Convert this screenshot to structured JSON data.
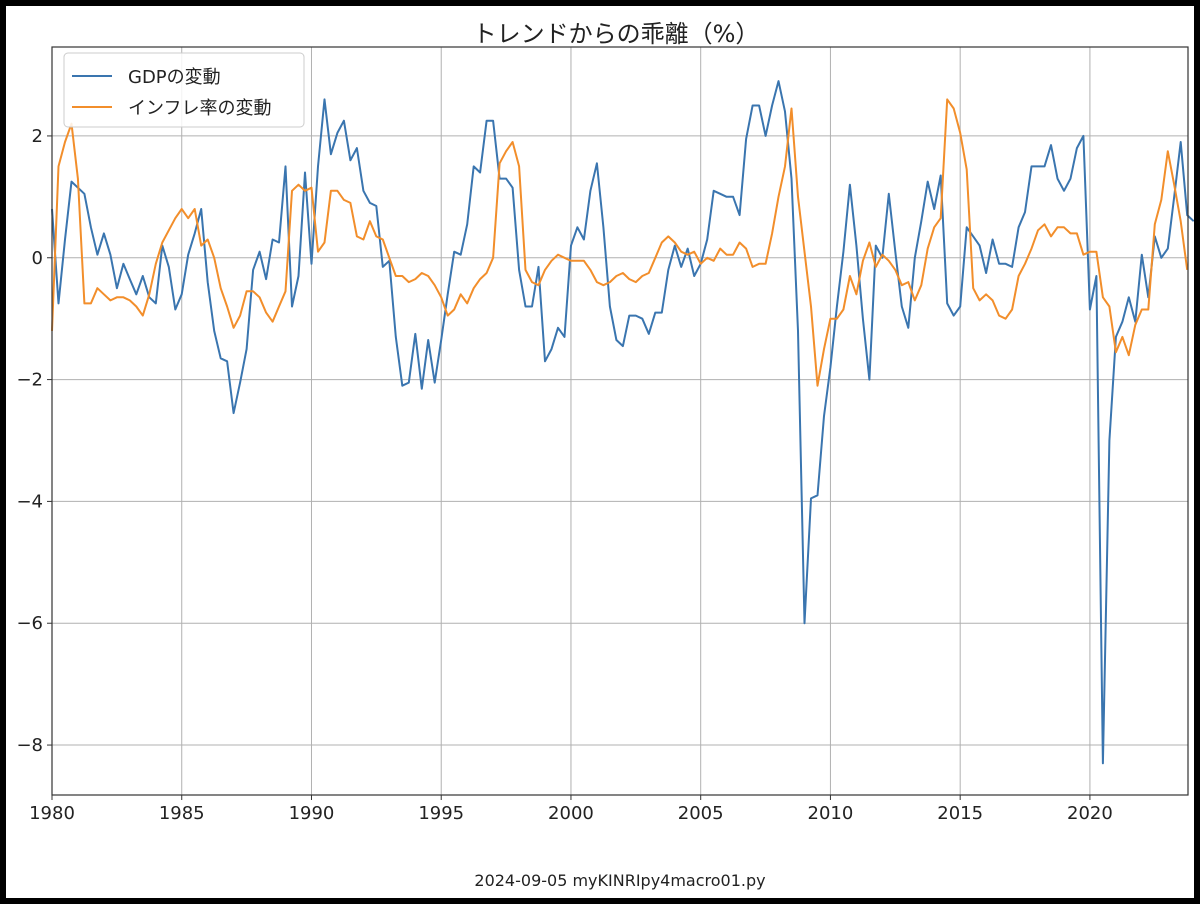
{
  "chart_data": {
    "type": "line",
    "title": "トレンドからの乖離（%）",
    "footer": "2024-09-05 myKINRIpy4macro01.py",
    "xlim": [
      1980,
      2023.78
    ],
    "ylim": [
      -8.82,
      3.46
    ],
    "xticks": [
      1980,
      1985,
      1990,
      1995,
      2000,
      2005,
      2010,
      2015,
      2020
    ],
    "yticks": [
      2,
      0,
      -2,
      -4,
      -6,
      -8
    ],
    "ytick_labels": [
      "2",
      "0",
      "−2",
      "−4",
      "−6",
      "−8"
    ],
    "grid": true,
    "legend_position": "top-left",
    "x_start": 1980,
    "frequency": "quarterly",
    "series": [
      {
        "name": "GDPの変動",
        "color": "#3a75af",
        "values": [
          0.8,
          -0.75,
          0.3,
          1.25,
          1.15,
          1.05,
          0.5,
          0.05,
          0.4,
          0.05,
          -0.5,
          -0.1,
          -0.35,
          -0.6,
          -0.3,
          -0.65,
          -0.75,
          0.2,
          -0.15,
          -0.85,
          -0.6,
          0.05,
          0.4,
          0.8,
          -0.4,
          -1.2,
          -1.65,
          -1.7,
          -2.55,
          -2.05,
          -1.5,
          -0.2,
          0.1,
          -0.35,
          0.3,
          0.25,
          1.5,
          -0.8,
          -0.3,
          1.4,
          -0.1,
          1.5,
          2.6,
          1.7,
          2.05,
          2.25,
          1.6,
          1.8,
          1.1,
          0.9,
          0.85,
          -0.15,
          -0.05,
          -1.3,
          -2.1,
          -2.05,
          -1.25,
          -2.15,
          -1.35,
          -2.05,
          -1.35,
          -0.6,
          0.1,
          0.05,
          0.55,
          1.5,
          1.4,
          2.25,
          2.25,
          1.3,
          1.3,
          1.15,
          -0.2,
          -0.8,
          -0.8,
          -0.15,
          -1.7,
          -1.5,
          -1.15,
          -1.3,
          0.2,
          0.5,
          0.3,
          1.1,
          1.55,
          0.5,
          -0.8,
          -1.35,
          -1.45,
          -0.95,
          -0.95,
          -1.0,
          -1.25,
          -0.9,
          -0.9,
          -0.2,
          0.2,
          -0.15,
          0.15,
          -0.3,
          -0.1,
          0.3,
          1.1,
          1.05,
          1.0,
          1.0,
          0.7,
          1.95,
          2.5,
          2.5,
          2.0,
          2.5,
          2.9,
          2.4,
          1.3,
          -1.2,
          -6.0,
          -3.95,
          -3.9,
          -2.6,
          -1.8,
          -0.8,
          0.1,
          1.2,
          0.2,
          -1.0,
          -2.0,
          0.2,
          0.0,
          1.05,
          0.1,
          -0.8,
          -1.15,
          0.0,
          0.6,
          1.25,
          0.8,
          1.35,
          -0.75,
          -0.95,
          -0.8,
          0.5,
          0.35,
          0.2,
          -0.25,
          0.3,
          -0.1,
          -0.1,
          -0.15,
          0.5,
          0.75,
          1.5,
          1.5,
          1.5,
          1.85,
          1.3,
          1.1,
          1.3,
          1.8,
          2.0,
          -0.85,
          -0.3,
          -8.3,
          -3.0,
          -1.3,
          -1.05,
          -0.65,
          -1.05,
          0.05,
          -0.65,
          0.35,
          0.0,
          0.15,
          1.0,
          1.9,
          0.7,
          0.6
        ]
      },
      {
        "name": "インフレ率の変動",
        "color": "#f28e2b",
        "values": [
          -1.2,
          1.5,
          1.9,
          2.2,
          1.3,
          -0.75,
          -0.75,
          -0.5,
          -0.6,
          -0.7,
          -0.65,
          -0.65,
          -0.7,
          -0.8,
          -0.95,
          -0.6,
          -0.1,
          0.25,
          0.45,
          0.65,
          0.8,
          0.65,
          0.8,
          0.2,
          0.3,
          0.0,
          -0.5,
          -0.8,
          -1.15,
          -0.95,
          -0.55,
          -0.55,
          -0.65,
          -0.9,
          -1.05,
          -0.8,
          -0.55,
          1.1,
          1.2,
          1.1,
          1.15,
          0.1,
          0.25,
          1.1,
          1.1,
          0.95,
          0.9,
          0.35,
          0.3,
          0.6,
          0.35,
          0.3,
          0.0,
          -0.3,
          -0.3,
          -0.4,
          -0.35,
          -0.25,
          -0.3,
          -0.45,
          -0.65,
          -0.95,
          -0.85,
          -0.6,
          -0.75,
          -0.5,
          -0.35,
          -0.25,
          0.0,
          1.55,
          1.75,
          1.9,
          1.5,
          -0.2,
          -0.4,
          -0.45,
          -0.2,
          -0.05,
          0.05,
          0.0,
          -0.05,
          -0.05,
          -0.05,
          -0.2,
          -0.4,
          -0.45,
          -0.4,
          -0.3,
          -0.25,
          -0.35,
          -0.4,
          -0.3,
          -0.25,
          0.0,
          0.25,
          0.35,
          0.25,
          0.1,
          0.05,
          0.1,
          -0.1,
          0.0,
          -0.05,
          0.15,
          0.05,
          0.05,
          0.25,
          0.15,
          -0.15,
          -0.1,
          -0.1,
          0.4,
          1.0,
          1.5,
          2.45,
          1.0,
          0.1,
          -0.8,
          -2.1,
          -1.5,
          -1.0,
          -1.0,
          -0.85,
          -0.3,
          -0.6,
          -0.05,
          0.25,
          -0.15,
          0.05,
          -0.05,
          -0.2,
          -0.45,
          -0.4,
          -0.7,
          -0.45,
          0.15,
          0.5,
          0.65,
          2.6,
          2.45,
          2.05,
          1.45,
          -0.5,
          -0.7,
          -0.6,
          -0.7,
          -0.95,
          -1.0,
          -0.85,
          -0.3,
          -0.1,
          0.15,
          0.45,
          0.55,
          0.35,
          0.5,
          0.5,
          0.4,
          0.4,
          0.05,
          0.1,
          0.1,
          -0.65,
          -0.8,
          -1.55,
          -1.3,
          -1.6,
          -1.1,
          -0.85,
          -0.85,
          0.55,
          0.95,
          1.75,
          1.2,
          0.6,
          -0.2
        ]
      }
    ]
  }
}
